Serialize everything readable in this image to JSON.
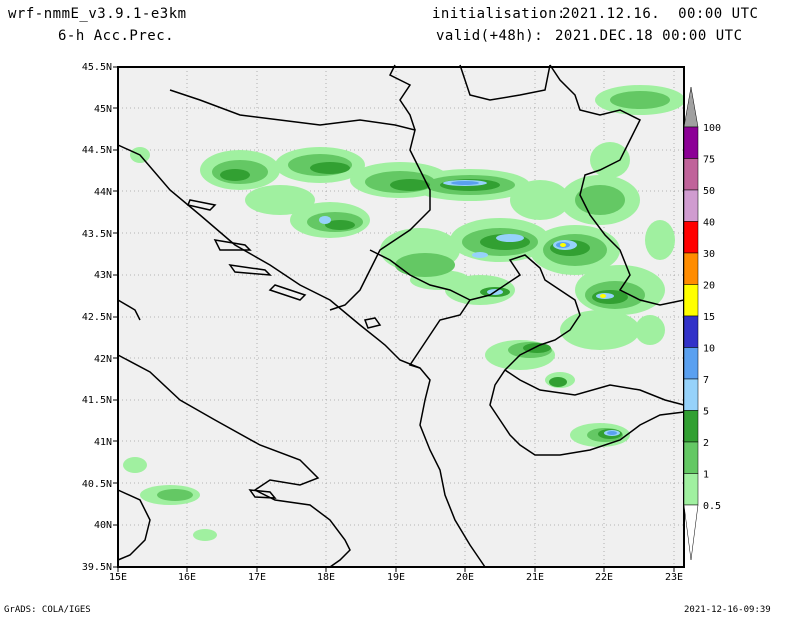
{
  "header": {
    "model": "wrf-nmmE_v3.9.1-e3km",
    "field": "6-h Acc.Prec.",
    "init_label": "initialisation:",
    "init_value": "2021.12.16.  00:00 UTC",
    "valid_label": "valid(+48h):",
    "valid_value": "2021.DEC.18 00:00 UTC"
  },
  "axes": {
    "lat_labels": [
      "45.5N",
      "45N",
      "44.5N",
      "44N",
      "43.5N",
      "43N",
      "42.5N",
      "42N",
      "41.5N",
      "41N",
      "40.5N",
      "40N",
      "39.5N"
    ],
    "lon_labels": [
      "15E",
      "16E",
      "17E",
      "18E",
      "19E",
      "20E",
      "21E",
      "22E",
      "23E"
    ]
  },
  "legend": {
    "levels": [
      "100",
      "75",
      "50",
      "40",
      "30",
      "20",
      "15",
      "10",
      "7",
      "5",
      "2",
      "1",
      "0.5"
    ],
    "colors": [
      "#a0a0a0",
      "#8c0096",
      "#c0639a",
      "#d09cd0",
      "#ff0000",
      "#ff8c00",
      "#ffff00",
      "#3232c8",
      "#5aa0f0",
      "#96d2fa",
      "#32a032",
      "#64c864",
      "#a0f0a0"
    ]
  },
  "colors": {
    "ocean": "#f0f0f0",
    "grid": "#a0a0a0",
    "border": "#000000"
  },
  "footer": {
    "left": "GrADS: COLA/IGES",
    "right": "2021-12-16-09:39"
  }
}
